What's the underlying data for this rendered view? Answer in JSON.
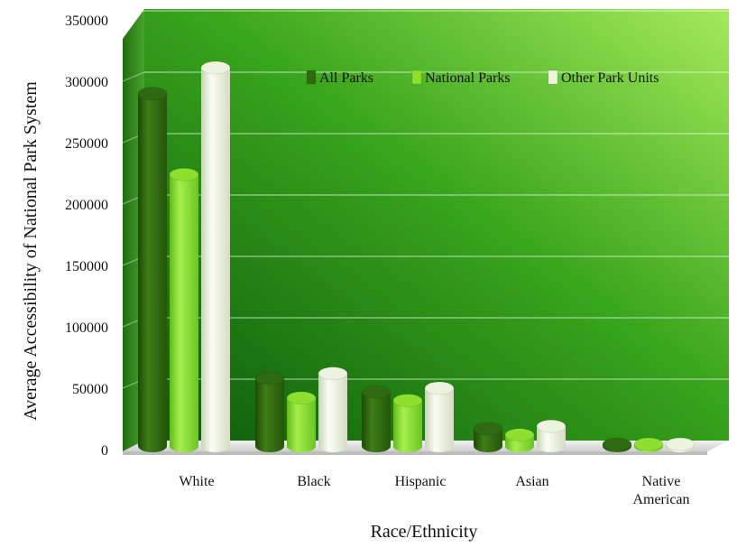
{
  "chart_data": {
    "type": "bar",
    "title": "",
    "xlabel": "Race/Ethnicity",
    "ylabel": "Average Accessibility of National Park System",
    "categories": [
      [
        "White"
      ],
      [
        "Black"
      ],
      [
        "Hispanic"
      ],
      [
        "Asian"
      ],
      [
        "Native",
        "American"
      ]
    ],
    "series": [
      {
        "name": "All Parks",
        "values": [
          290000,
          58000,
          47000,
          17000,
          1000
        ],
        "color": "#2f6a12"
      },
      {
        "name": "National Parks",
        "values": [
          224000,
          42000,
          40000,
          12000,
          800
        ],
        "color": "#8ee02e"
      },
      {
        "name": "Other Park Units",
        "values": [
          311000,
          62000,
          50000,
          19000,
          1500
        ],
        "color": "#eef3df"
      }
    ],
    "ylim": [
      0,
      350000
    ],
    "yticks": [
      "0",
      "50000",
      "100000",
      "150000",
      "200000",
      "250000",
      "300000",
      "350000"
    ],
    "grid": true,
    "legend_position": "top-right"
  }
}
